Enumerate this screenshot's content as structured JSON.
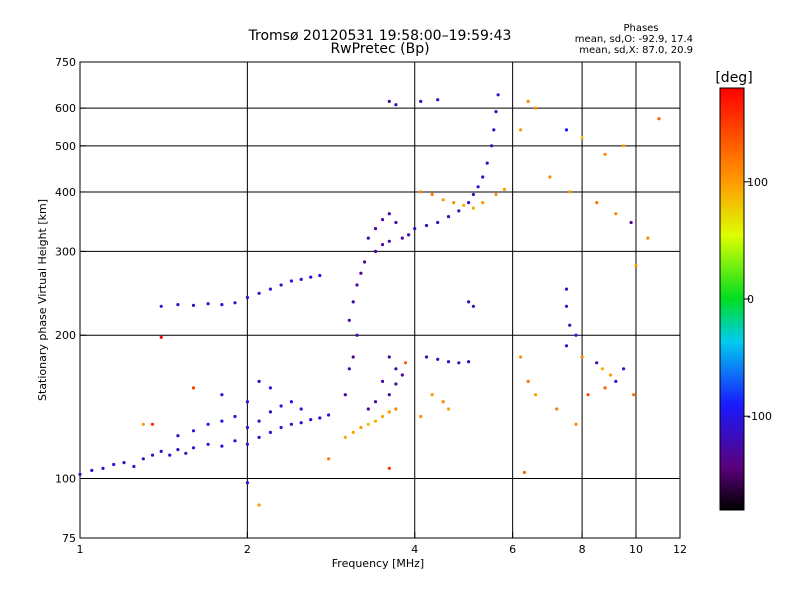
{
  "chart_data": {
    "type": "scatter",
    "title": "Tromsø 20120531 19:58:00–19:59:43",
    "subtitle": "RwPretec (Bp)",
    "xlabel": "Frequency [MHz]",
    "ylabel": "Stationary phase Virtual Height [km]",
    "x_scale": "log",
    "y_scale": "log",
    "xlim": [
      1,
      12
    ],
    "ylim": [
      75,
      750
    ],
    "x_ticks": [
      1,
      2,
      4,
      6,
      8,
      10,
      12
    ],
    "x_grid": [
      2,
      4,
      6,
      8,
      10
    ],
    "y_ticks": [
      75,
      100,
      200,
      300,
      400,
      500,
      600,
      750
    ],
    "y_grid": [
      100,
      200,
      300,
      400,
      500,
      600
    ],
    "grid": true,
    "stats": {
      "heading": "Phases",
      "line1": "mean, sd,O: -92.9, 17.4",
      "line2": "mean, sd,X: 87.0, 20.9"
    },
    "colorbar": {
      "label": "[deg]",
      "range": [
        -180,
        180
      ],
      "ticks": [
        100,
        0,
        -100
      ],
      "tick_labels": [
        "100",
        "0",
        "-100"
      ]
    },
    "series": [
      {
        "points": [
          [
            1.0,
            102,
            -115
          ],
          [
            1.05,
            104,
            -110
          ],
          [
            1.1,
            105,
            -105
          ],
          [
            1.15,
            107,
            -100
          ],
          [
            1.2,
            108,
            -112
          ],
          [
            1.25,
            106,
            -108
          ],
          [
            1.3,
            110,
            -115
          ],
          [
            1.35,
            112,
            -110
          ],
          [
            1.4,
            114,
            -120
          ],
          [
            1.45,
            112,
            -105
          ],
          [
            1.5,
            115,
            -112
          ],
          [
            1.55,
            113,
            -118
          ],
          [
            1.6,
            116,
            -110
          ],
          [
            1.7,
            118,
            -105
          ],
          [
            1.8,
            117,
            -100
          ],
          [
            1.9,
            120,
            -108
          ],
          [
            2.0,
            118,
            -100
          ],
          [
            2.1,
            122,
            -110
          ],
          [
            2.2,
            125,
            -105
          ],
          [
            2.3,
            128,
            -100
          ],
          [
            2.4,
            130,
            -112
          ],
          [
            2.5,
            131,
            -105
          ],
          [
            2.6,
            133,
            -100
          ],
          [
            2.7,
            134,
            -110
          ],
          [
            2.8,
            136,
            -105
          ],
          [
            1.5,
            123,
            -120
          ],
          [
            1.6,
            126,
            -110
          ],
          [
            1.7,
            130,
            -100
          ],
          [
            1.8,
            132,
            -95
          ],
          [
            1.9,
            135,
            -100
          ],
          [
            2.0,
            128,
            -100
          ],
          [
            2.1,
            132,
            -115
          ],
          [
            2.2,
            138,
            -120
          ],
          [
            2.3,
            142,
            -105
          ],
          [
            2.4,
            145,
            -100
          ],
          [
            2.5,
            140,
            -110
          ],
          [
            2.0,
            145,
            -95
          ],
          [
            1.8,
            150,
            -110
          ],
          [
            2.2,
            155,
            -100
          ],
          [
            2.1,
            160,
            -120
          ],
          [
            1.4,
            230,
            -110
          ],
          [
            1.5,
            232,
            -115
          ],
          [
            1.6,
            231,
            -118
          ],
          [
            1.7,
            233,
            -110
          ],
          [
            1.8,
            232,
            -112
          ],
          [
            1.9,
            234,
            -115
          ],
          [
            2.0,
            240,
            -108
          ],
          [
            2.1,
            245,
            -110
          ],
          [
            2.2,
            250,
            -105
          ],
          [
            2.3,
            255,
            -110
          ],
          [
            2.4,
            260,
            -105
          ],
          [
            2.5,
            262,
            -100
          ],
          [
            2.6,
            265,
            -105
          ],
          [
            2.7,
            267,
            -100
          ],
          [
            3.0,
            122,
            90
          ],
          [
            3.1,
            125,
            95
          ],
          [
            3.2,
            128,
            100
          ],
          [
            3.3,
            130,
            85
          ],
          [
            3.4,
            132,
            90
          ],
          [
            3.5,
            135,
            95
          ],
          [
            3.6,
            138,
            100
          ],
          [
            3.7,
            140,
            110
          ],
          [
            3.0,
            150,
            -130
          ],
          [
            3.05,
            170,
            -125
          ],
          [
            3.1,
            180,
            -135
          ],
          [
            3.15,
            200,
            -128
          ],
          [
            3.05,
            215,
            -130
          ],
          [
            3.1,
            235,
            -125
          ],
          [
            3.15,
            255,
            -130
          ],
          [
            3.2,
            270,
            -128
          ],
          [
            3.25,
            285,
            -125
          ],
          [
            3.3,
            320,
            -125
          ],
          [
            3.4,
            335,
            -130
          ],
          [
            3.5,
            350,
            -128
          ],
          [
            3.6,
            360,
            -130
          ],
          [
            3.7,
            345,
            -125
          ],
          [
            3.4,
            300,
            -128
          ],
          [
            3.5,
            310,
            -130
          ],
          [
            3.6,
            315,
            -128
          ],
          [
            3.8,
            320,
            -125
          ],
          [
            3.9,
            325,
            -115
          ],
          [
            3.5,
            160,
            -130
          ],
          [
            3.6,
            150,
            -128
          ],
          [
            3.7,
            158,
            -125
          ],
          [
            3.8,
            165,
            -130
          ],
          [
            3.4,
            145,
            -125
          ],
          [
            3.3,
            140,
            -130
          ],
          [
            3.6,
            180,
            -128
          ],
          [
            3.7,
            170,
            -125
          ],
          [
            3.85,
            175,
            130
          ],
          [
            4.0,
            335,
            -120
          ],
          [
            4.2,
            340,
            -118
          ],
          [
            4.4,
            345,
            -120
          ],
          [
            4.6,
            355,
            -115
          ],
          [
            4.8,
            365,
            -118
          ],
          [
            5.0,
            380,
            -110
          ],
          [
            5.1,
            395,
            -115
          ],
          [
            5.2,
            410,
            -112
          ],
          [
            5.3,
            430,
            -110
          ],
          [
            5.4,
            460,
            -115
          ],
          [
            5.5,
            500,
            -118
          ],
          [
            5.55,
            540,
            -112
          ],
          [
            5.6,
            590,
            -115
          ],
          [
            5.65,
            640,
            -110
          ],
          [
            4.1,
            400,
            110
          ],
          [
            4.3,
            395,
            115
          ],
          [
            4.5,
            385,
            100
          ],
          [
            4.7,
            380,
            105
          ],
          [
            4.9,
            375,
            90
          ],
          [
            5.1,
            370,
            95
          ],
          [
            5.3,
            380,
            100
          ],
          [
            5.6,
            395,
            105
          ],
          [
            5.8,
            405,
            100
          ],
          [
            4.2,
            180,
            -120
          ],
          [
            4.4,
            178,
            -118
          ],
          [
            4.6,
            176,
            -115
          ],
          [
            4.8,
            175,
            -120
          ],
          [
            5.0,
            176,
            -118
          ],
          [
            4.3,
            150,
            100
          ],
          [
            4.5,
            145,
            110
          ],
          [
            4.6,
            140,
            95
          ],
          [
            4.1,
            135,
            105
          ],
          [
            3.6,
            620,
            -125
          ],
          [
            3.7,
            610,
            -120
          ],
          [
            4.1,
            620,
            -115
          ],
          [
            4.4,
            625,
            -118
          ],
          [
            5.0,
            235,
            -120
          ],
          [
            5.1,
            230,
            -118
          ],
          [
            6.4,
            620,
            110
          ],
          [
            6.6,
            600,
            105
          ],
          [
            7.5,
            540,
            -90
          ],
          [
            8.0,
            520,
            80
          ],
          [
            8.8,
            480,
            110
          ],
          [
            9.5,
            500,
            95
          ],
          [
            6.2,
            540,
            100
          ],
          [
            7.0,
            430,
            110
          ],
          [
            7.6,
            400,
            100
          ],
          [
            8.5,
            380,
            120
          ],
          [
            9.2,
            360,
            110
          ],
          [
            9.8,
            345,
            -130
          ],
          [
            10.0,
            280,
            100
          ],
          [
            10.5,
            320,
            110
          ],
          [
            11.0,
            570,
            130
          ],
          [
            7.5,
            250,
            -105
          ],
          [
            7.5,
            230,
            -110
          ],
          [
            7.6,
            210,
            -120
          ],
          [
            7.8,
            200,
            -100
          ],
          [
            7.5,
            190,
            -110
          ],
          [
            8.0,
            180,
            110
          ],
          [
            8.5,
            175,
            -120
          ],
          [
            8.7,
            170,
            90
          ],
          [
            9.0,
            165,
            100
          ],
          [
            9.2,
            160,
            -110
          ],
          [
            8.8,
            155,
            130
          ],
          [
            9.5,
            170,
            -115
          ],
          [
            9.9,
            150,
            120
          ],
          [
            8.2,
            150,
            140
          ],
          [
            6.2,
            180,
            105
          ],
          [
            6.4,
            160,
            120
          ],
          [
            6.6,
            150,
            100
          ],
          [
            7.2,
            140,
            115
          ],
          [
            7.8,
            130,
            110
          ],
          [
            6.3,
            103,
            130
          ],
          [
            1.4,
            198,
            180
          ],
          [
            1.35,
            130,
            160
          ],
          [
            2.8,
            110,
            120
          ],
          [
            3.6,
            105,
            150
          ],
          [
            1.6,
            155,
            150
          ],
          [
            2.1,
            88,
            100
          ],
          [
            2.0,
            98,
            -100
          ],
          [
            1.3,
            130,
            100
          ]
        ]
      }
    ]
  }
}
